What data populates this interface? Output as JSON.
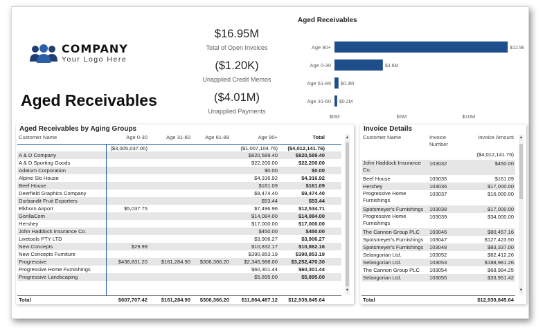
{
  "company": {
    "name": "COMPANY",
    "tagline": "Your Logo Here"
  },
  "page_title": "Aged Receivables",
  "kpis": [
    {
      "value": "$16.95M",
      "label": "Total of Open Invoices"
    },
    {
      "value": "($1.20K)",
      "label": "Unapplied Credit Memos"
    },
    {
      "value": "($4.01M)",
      "label": "Unapplied Payments"
    }
  ],
  "chart_data": {
    "type": "bar",
    "orientation": "horizontal",
    "title": "Aged Receivables",
    "categories": [
      "Age 90+",
      "Age 0-30",
      "Age 61-89",
      "Age 31-60"
    ],
    "values": [
      12.9,
      3.6,
      0.3,
      0.2
    ],
    "data_labels": [
      "$12.9M",
      "$3.6M",
      "$0.3M",
      "$0.2M"
    ],
    "xlim": [
      0,
      13.2
    ],
    "x_ticks": [
      0,
      5,
      10
    ],
    "x_tick_labels": [
      "$0M",
      "$5M",
      "$10M"
    ],
    "bar_color": "#1f4e8c"
  },
  "aging_table": {
    "title": "Aged Receivables by Aging Groups",
    "columns": [
      "Customer Name",
      "Age 0-30",
      "Age 31-60",
      "Age 61-89",
      "Age 90+",
      "Total"
    ],
    "rows": [
      [
        "",
        "($3,005,037.00)",
        "",
        "",
        "($1,007,104.76)",
        "($4,012,141.76)"
      ],
      [
        "A & D Company",
        "",
        "",
        "",
        "$820,589.40",
        "$820,589.40"
      ],
      [
        "A & D Sporting Goods",
        "",
        "",
        "",
        "$22,200.00",
        "$22,200.00"
      ],
      [
        "Adatum Corporation",
        "",
        "",
        "",
        "$0.00",
        "$0.00"
      ],
      [
        "Alpine Ski House",
        "",
        "",
        "",
        "$4,316.92",
        "$4,316.92"
      ],
      [
        "Beef House",
        "",
        "",
        "",
        "$161.09",
        "$161.09"
      ],
      [
        "Deerfield Graphics Company",
        "",
        "",
        "",
        "$9,474.40",
        "$9,474.40"
      ],
      [
        "Durbandit Fruit Exporters",
        "",
        "",
        "",
        "$53.44",
        "$53.44"
      ],
      [
        "Elkhorn Airport",
        "$5,037.75",
        "",
        "",
        "$7,496.96",
        "$12,534.71"
      ],
      [
        "GorillaCom",
        "",
        "",
        "",
        "$14,084.00",
        "$14,084.00"
      ],
      [
        "Hershey",
        "",
        "",
        "",
        "$17,000.00",
        "$17,000.00"
      ],
      [
        "John Haddock Insurance Co.",
        "",
        "",
        "",
        "$450.00",
        "$450.00"
      ],
      [
        "Livetools PTY LTD",
        "",
        "",
        "",
        "$3,906.27",
        "$3,906.27"
      ],
      [
        "New Concepts",
        "$29.99",
        "",
        "",
        "$10,832.17",
        "$10,862.16"
      ],
      [
        "New Concepts Furniture",
        "",
        "",
        "",
        "$390,853.19",
        "$390,853.19"
      ],
      [
        "Progressive",
        "$438,831.20",
        "$161,284.90",
        "$306,366.20",
        "$2,345,988.00",
        "$3,252,470.30"
      ],
      [
        "Progressive Home Furnishings",
        "",
        "",
        "",
        "$60,301.44",
        "$60,301.44"
      ],
      [
        "Progressive Landscaping",
        "",
        "",
        "",
        "$5,895.00",
        "$5,895.00"
      ]
    ],
    "total": [
      "Total",
      "$607,707.42",
      "$161,284.90",
      "$306,366.20",
      "$11,864,487.12",
      "$12,939,845.64"
    ]
  },
  "invoice_table": {
    "title": "Invoice Details",
    "columns": [
      "Customer Name",
      "Invoice Number",
      "Invoice Amount"
    ],
    "rows": [
      [
        "",
        "",
        "($4,012,141.76)"
      ],
      [
        "John Haddock Insurance Co.",
        "103032",
        "$450.00"
      ],
      [
        "Beef House",
        "103035",
        "$161.09"
      ],
      [
        "Hershey",
        "103036",
        "$17,000.00"
      ],
      [
        "Progressive Home Furnishings",
        "103037",
        "$16,000.00"
      ],
      [
        "Spotsmeyer's Furnishings",
        "103038",
        "$17,000.00"
      ],
      [
        "Progressive Home Furnishings",
        "103039",
        "$34,000.00"
      ],
      [
        "The Cannon Group PLC",
        "103046",
        "$80,457.16"
      ],
      [
        "Spotsmeyer's Furnishings",
        "103047",
        "$127,423.50"
      ],
      [
        "Spotsmeyer's Furnishings",
        "103048",
        "$83,337.00"
      ],
      [
        "Selangorian Ltd.",
        "103052",
        "$82,412.26"
      ],
      [
        "Selangorian Ltd.",
        "103053",
        "$188,981.26"
      ],
      [
        "The Cannon Group PLC",
        "103054",
        "$68,984.25"
      ],
      [
        "Selangorian Ltd.",
        "103055",
        "$33,951.42"
      ]
    ],
    "total": [
      "Total",
      "",
      "$12,939,845.64"
    ]
  },
  "icons": {
    "logo": "people-group-icon",
    "scroll_up": "chevron-up-icon",
    "scroll_down": "chevron-down-icon"
  }
}
